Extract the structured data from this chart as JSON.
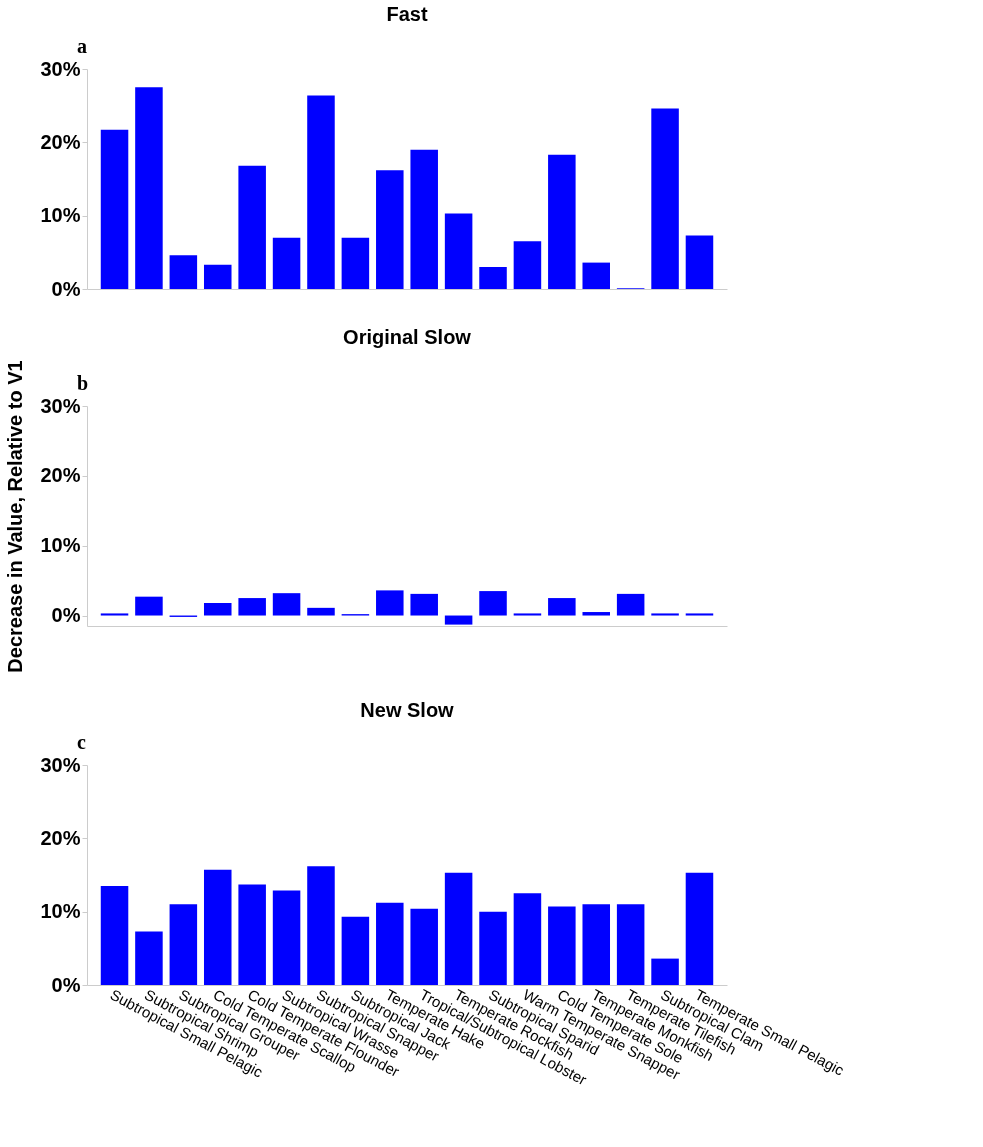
{
  "chart_data": [
    {
      "type": "bar",
      "title": "Fast",
      "annotations": [
        "a"
      ],
      "tick_labels": "y",
      "grid": false,
      "series": [
        {
          "color": "#0000ff",
          "values": [
            21.7,
            27.5,
            4.6,
            3.3,
            16.8,
            7.0,
            26.4,
            7.0,
            16.2,
            19.0,
            10.3,
            3.0,
            6.5,
            18.3,
            3.6,
            0.1,
            24.6,
            7.3
          ]
        }
      ],
      "ylim": [
        0,
        30
      ],
      "yticks": [
        {
          "value": 0,
          "label": "0%"
        },
        {
          "value": 10,
          "label": "10%"
        },
        {
          "value": 20,
          "label": "20%"
        },
        {
          "value": 30,
          "label": "30%"
        }
      ]
    },
    {
      "type": "bar",
      "title": "Original Slow",
      "annotations": [
        "b"
      ],
      "tick_labels": "y",
      "grid": false,
      "ylabel": "Decrease in Value, Relative to V1",
      "series": [
        {
          "color": "#0000ff",
          "values": [
            0.3,
            2.7,
            -0.2,
            1.8,
            2.5,
            3.2,
            1.1,
            0.2,
            3.6,
            3.1,
            -1.3,
            3.5,
            0.3,
            2.5,
            0.5,
            3.1,
            0.3,
            0.3
          ]
        }
      ],
      "ylim": [
        -1.5,
        30
      ],
      "yticks": [
        {
          "value": 0,
          "label": "0%"
        },
        {
          "value": 10,
          "label": "10%"
        },
        {
          "value": 20,
          "label": "20%"
        },
        {
          "value": 30,
          "label": "30%"
        }
      ]
    },
    {
      "type": "bar",
      "title": "New Slow",
      "annotations": [
        "c"
      ],
      "grid": false,
      "categories": [
        "Subtropical Small Pelagic",
        "Subtropical Shrimp",
        "Subtropical Grouper",
        "Cold Temperate Scallop",
        "Cold Temperate Flounder",
        "Subtropical Wrasse",
        "Subtropical Snapper",
        "Subtropical Jack",
        "Temperate Hake",
        "Tropical/Subtropical Lobster",
        "Temperate Rockfish",
        "Subtropical Sparid",
        "Warm Temperate Snapper",
        "Cold Temperate Sole",
        "Temperate Monkfish",
        "Temperate Tilefish",
        "Subtropical Clam",
        "Temperate Small Pelagic"
      ],
      "series": [
        {
          "color": "#0000ff",
          "values": [
            13.5,
            7.3,
            11.0,
            15.7,
            13.7,
            12.9,
            16.2,
            9.3,
            11.2,
            10.4,
            15.3,
            10.0,
            12.5,
            10.7,
            11.0,
            11.0,
            3.6,
            15.3
          ]
        }
      ],
      "ylim": [
        0,
        30
      ],
      "yticks": [
        {
          "value": 0,
          "label": "0%"
        },
        {
          "value": 10,
          "label": "10%"
        },
        {
          "value": 20,
          "label": "20%"
        },
        {
          "value": 30,
          "label": "30%"
        }
      ]
    }
  ]
}
